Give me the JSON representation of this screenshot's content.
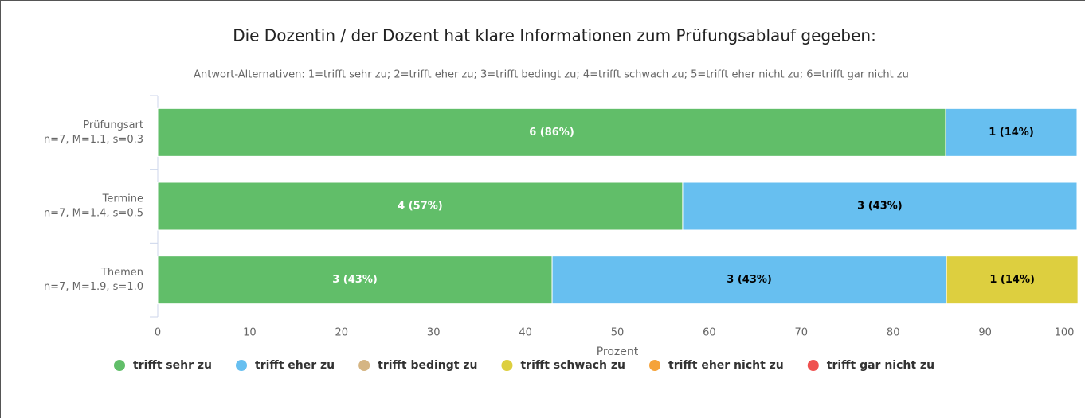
{
  "chart_data": {
    "type": "stacked_bar_horizontal",
    "title": "Die Dozentin / der Dozent hat klare Informationen zum Prüfungsablauf gegeben:",
    "subtitle": "Antwort-Alternativen: 1=trifft sehr zu; 2=trifft eher zu; 3=trifft bedingt zu; 4=trifft schwach zu; 5=trifft eher nicht zu; 6=trifft gar nicht zu",
    "categories": [
      "Prüfungsart",
      "Termine",
      "Themen"
    ],
    "category_stats": [
      "n=7, M=1.1, s=0.3",
      "n=7, M=1.4, s=0.5",
      "n=7, M=1.9, s=1.0"
    ],
    "x_label": "Prozent",
    "xlim": [
      0,
      100
    ],
    "xticks": [
      0,
      10,
      20,
      30,
      40,
      50,
      60,
      70,
      80,
      90,
      100
    ],
    "legend": "bottom",
    "series": [
      {
        "name": "trifft sehr zu",
        "color": "#61be69",
        "label_color": "#ffffff",
        "values": [
          85.7,
          57.1,
          42.9
        ],
        "value_labels": [
          "6 (86%)",
          "4 (57%)",
          "3 (43%)"
        ]
      },
      {
        "name": "trifft eher zu",
        "color": "#67bff0",
        "label_color": "#000000",
        "values": [
          14.3,
          42.9,
          42.9
        ],
        "value_labels": [
          "1 (14%)",
          "3 (43%)",
          "3 (43%)"
        ]
      },
      {
        "name": "trifft bedingt zu",
        "color": "#d5b583",
        "label_color": "#000000",
        "values": [
          0,
          0,
          0
        ],
        "value_labels": [
          null,
          null,
          null
        ]
      },
      {
        "name": "trifft schwach zu",
        "color": "#ddcf3f",
        "label_color": "#000000",
        "values": [
          0,
          0,
          14.3
        ],
        "value_labels": [
          null,
          null,
          "1 (14%)"
        ]
      },
      {
        "name": "trifft eher nicht zu",
        "color": "#f5a33a",
        "label_color": "#000000",
        "values": [
          0,
          0,
          0
        ],
        "value_labels": [
          null,
          null,
          null
        ]
      },
      {
        "name": "trifft gar nicht zu",
        "color": "#ef5150",
        "label_color": "#000000",
        "values": [
          0,
          0,
          0
        ],
        "value_labels": [
          null,
          null,
          null
        ]
      }
    ]
  }
}
